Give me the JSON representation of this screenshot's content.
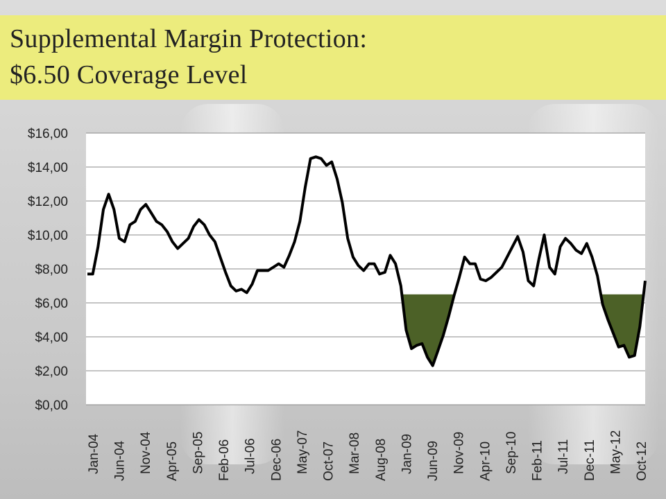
{
  "slide": {
    "title_line1": "Supplemental Margin Protection:",
    "title_line2": "$6.50 Coverage Level"
  },
  "colors": {
    "title_band": "#ecec7d",
    "line": "#000000",
    "fill_below_coverage": "#4c6127",
    "plot_background": "#ffffff"
  },
  "chart_data": {
    "type": "line",
    "title": "",
    "xlabel": "",
    "ylabel": "",
    "ylim": [
      0,
      16
    ],
    "y_ticks": [
      "$0,00",
      "$2,00",
      "$4,00",
      "$6,00",
      "$8,00",
      "$10,00",
      "$12,00",
      "$14,00",
      "$16,00"
    ],
    "x_tick_labels": [
      "Jan-04",
      "Jun-04",
      "Nov-04",
      "Apr-05",
      "Sep-05",
      "Feb-06",
      "Jul-06",
      "Dec-06",
      "May-07",
      "Oct-07",
      "Mar-08",
      "Aug-08",
      "Jan-09",
      "Jun-09",
      "Nov-09",
      "Apr-10",
      "Sep-10",
      "Feb-11",
      "Jul-11",
      "Dec-11",
      "May-12",
      "Oct-12"
    ],
    "grid": true,
    "coverage_level": 6.5,
    "area_below_line": true,
    "series": [
      {
        "values": [
          7.7,
          7.7,
          9.3,
          11.5,
          12.4,
          11.5,
          9.8,
          9.6,
          10.6,
          10.8,
          11.5,
          11.8,
          11.3,
          10.8,
          10.6,
          10.2,
          9.6,
          9.2,
          9.5,
          9.8,
          10.5,
          10.9,
          10.6,
          10.0,
          9.6,
          8.7,
          7.8,
          7.0,
          6.7,
          6.8,
          6.6,
          7.1,
          7.9,
          7.9,
          7.9,
          8.1,
          8.3,
          8.1,
          8.8,
          9.6,
          10.8,
          12.8,
          14.5,
          14.6,
          14.5,
          14.1,
          14.3,
          13.3,
          11.9,
          9.8,
          8.7,
          8.2,
          7.9,
          8.3,
          8.3,
          7.7,
          7.8,
          8.8,
          8.3,
          7.0,
          4.4,
          3.3,
          3.5,
          3.6,
          2.8,
          2.3,
          3.2,
          4.1,
          5.2,
          6.4,
          7.5,
          8.7,
          8.3,
          8.3,
          7.4,
          7.3,
          7.5,
          7.8,
          8.1,
          8.7,
          9.3,
          9.9,
          9.0,
          7.3,
          7.0,
          8.6,
          10.0,
          8.1,
          7.7,
          9.3,
          9.8,
          9.5,
          9.1,
          8.9,
          9.5,
          8.7,
          7.6,
          5.9,
          5.0,
          4.2,
          3.4,
          3.5,
          2.8,
          2.9,
          4.6,
          7.3
        ]
      }
    ]
  }
}
